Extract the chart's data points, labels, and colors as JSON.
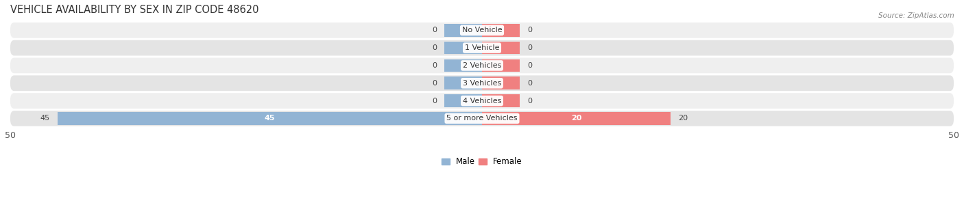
{
  "title": "VEHICLE AVAILABILITY BY SEX IN ZIP CODE 48620",
  "source": "Source: ZipAtlas.com",
  "categories": [
    "No Vehicle",
    "1 Vehicle",
    "2 Vehicles",
    "3 Vehicles",
    "4 Vehicles",
    "5 or more Vehicles"
  ],
  "male_values": [
    0,
    0,
    0,
    0,
    0,
    45
  ],
  "female_values": [
    0,
    0,
    0,
    0,
    0,
    20
  ],
  "male_color": "#92b4d4",
  "female_color": "#f08080",
  "row_bg_light": "#efefef",
  "row_bg_dark": "#e4e4e4",
  "xlim": 50,
  "stub_size": 4,
  "title_fontsize": 10.5,
  "label_fontsize": 8,
  "tick_fontsize": 9,
  "value_fontsize": 8,
  "bar_height": 0.72,
  "figsize": [
    14.06,
    3.06
  ],
  "dpi": 100
}
